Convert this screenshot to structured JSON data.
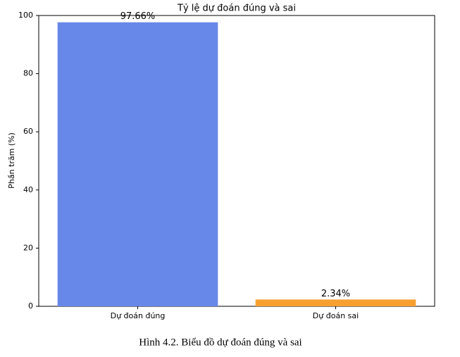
{
  "chart_data": {
    "type": "bar",
    "title": "Tỷ lệ dự đoán đúng và sai",
    "ylabel": "Phần trăm (%)",
    "categories": [
      "Dự đoán đúng",
      "Dự đoán sai"
    ],
    "values": [
      97.66,
      2.34
    ],
    "value_labels": [
      "97.66%",
      "2.34%"
    ],
    "colors": [
      "#6788e8",
      "#f7a030"
    ],
    "ylim": [
      0,
      100
    ],
    "yticks": [
      0,
      20,
      40,
      60,
      80,
      100
    ],
    "grid": false
  },
  "caption": "Hình 4.2. Biểu đồ dự đoán đúng và sai"
}
